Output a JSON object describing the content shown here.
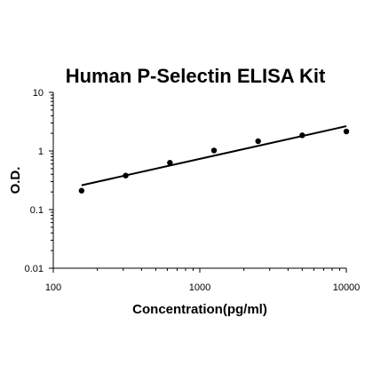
{
  "chart_data": {
    "type": "scatter",
    "title": "Human P-Selectin ELISA Kit",
    "xlabel": "Concentration(pg/ml)",
    "ylabel": "O.D.",
    "x_scale": "log",
    "y_scale": "log",
    "xlim": [
      100,
      10000
    ],
    "ylim": [
      0.01,
      10
    ],
    "x_ticks": [
      "100",
      "1000",
      "10000"
    ],
    "y_ticks": [
      "10",
      "1",
      "0.1",
      "0.01"
    ],
    "grid": false,
    "points": {
      "x": [
        156,
        312,
        625,
        1250,
        2500,
        5000,
        10000
      ],
      "y": [
        0.21,
        0.38,
        0.63,
        1.02,
        1.47,
        1.85,
        2.15
      ]
    },
    "fit_line": {
      "x": [
        156,
        10000
      ],
      "y": [
        0.26,
        2.65
      ]
    }
  }
}
